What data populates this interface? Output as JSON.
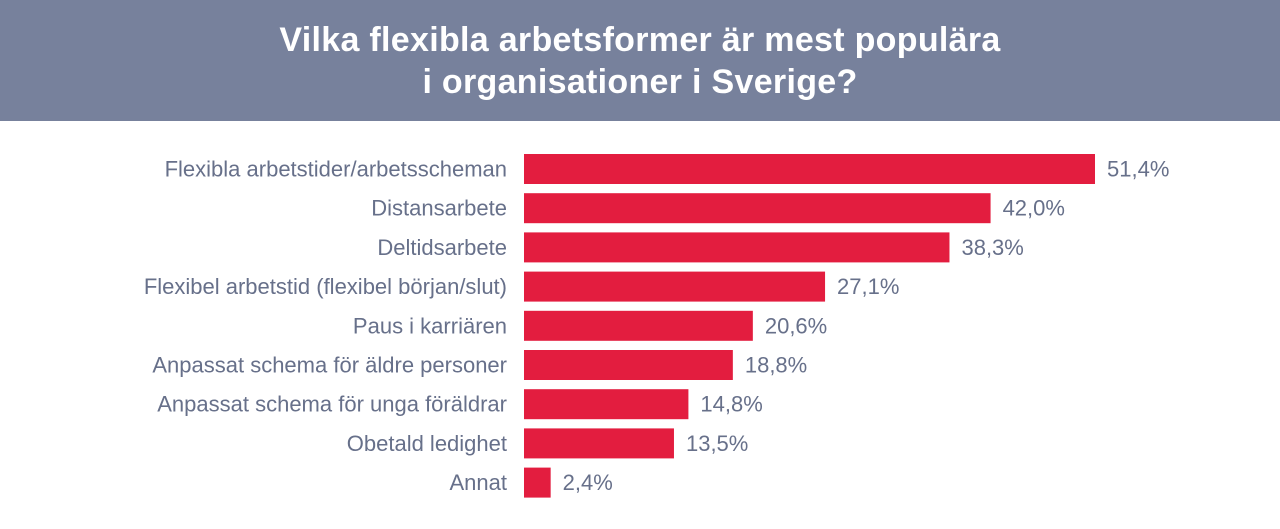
{
  "header": {
    "title_line1": "Vilka flexibla arbetsformer är mest populära",
    "title_line2": "i organisationer i Sverige?"
  },
  "colors": {
    "header_bg": "#77819c",
    "bar": "#e31d3f",
    "label_text": "#67708a"
  },
  "chart_data": {
    "type": "bar",
    "orientation": "horizontal",
    "title": "Vilka flexibla arbetsformer är mest populära i organisationer i Sverige?",
    "categories": [
      "Flexibla arbetstider/arbetsscheman",
      "Distansarbete",
      "Deltidsarbete",
      "Flexibel arbetstid (flexibel början/slut)",
      "Paus i karriären",
      "Anpassat schema för äldre personer",
      "Anpassat schema för unga föräldrar",
      "Obetald ledighet",
      "Annat"
    ],
    "values": [
      51.4,
      42.0,
      38.3,
      27.1,
      20.6,
      18.8,
      14.8,
      13.5,
      2.4
    ],
    "value_labels": [
      "51,4%",
      "42,0%",
      "38,3%",
      "27,1%",
      "20,6%",
      "18,8%",
      "14,8%",
      "13,5%",
      "2,4%"
    ],
    "unit": "%",
    "xlim": [
      0,
      51.4
    ],
    "grid": false,
    "legend": "none"
  }
}
